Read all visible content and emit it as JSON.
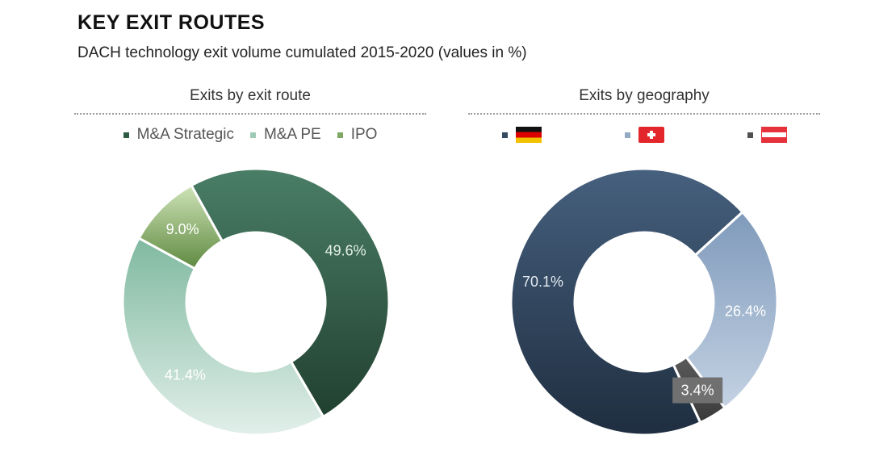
{
  "header": {
    "title": "KEY EXIT ROUTES",
    "subtitle": "DACH technology exit volume cumulated 2015-2020 (values in %)"
  },
  "chart_data": [
    {
      "type": "pie",
      "subtype": "donut",
      "title": "Exits by exit route",
      "categories": [
        "M&A Strategic",
        "M&A PE",
        "IPO"
      ],
      "values": [
        49.6,
        41.4,
        9.0
      ],
      "labels": [
        "49.6%",
        "41.4%",
        "9.0%"
      ],
      "colors": [
        "#2e5a44",
        "#9fcbb6",
        "#7fa865"
      ],
      "legend": "top"
    },
    {
      "type": "pie",
      "subtype": "donut",
      "title": "Exits by geography",
      "categories": [
        "Germany",
        "Switzerland",
        "Austria"
      ],
      "values": [
        70.1,
        26.4,
        3.4
      ],
      "labels": [
        "70.1%",
        "26.4%",
        "3.4%"
      ],
      "colors": [
        "#344a64",
        "#94aac4",
        "#505050"
      ],
      "legend": "top"
    }
  ]
}
